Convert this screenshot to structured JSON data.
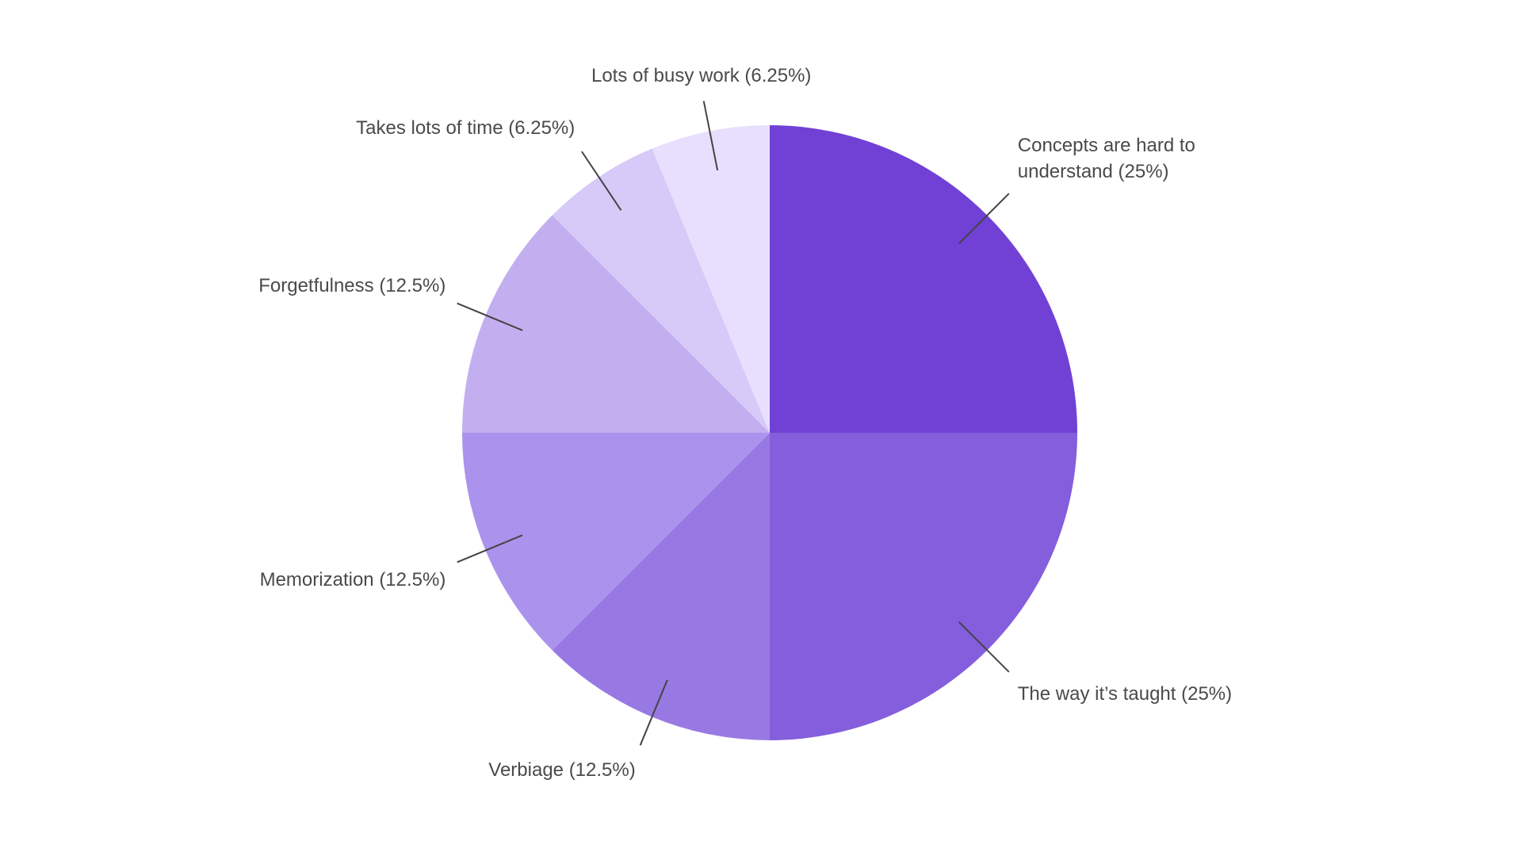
{
  "chart_data": {
    "type": "pie",
    "categories": [
      "Concepts are hard to understand",
      "The way it’s taught",
      "Verbiage",
      "Memorization",
      "Forgetfulness",
      "Takes lots of time",
      "Lots of busy work"
    ],
    "values": [
      25,
      25,
      12.5,
      12.5,
      12.5,
      6.25,
      6.25
    ],
    "value_labels": [
      "(25%)",
      "(25%)",
      "(12.5%)",
      "(12.5%)",
      "(12.5%)",
      "(6.25%)",
      "(6.25%)"
    ],
    "colors": [
      "#7141d6",
      "#845edc",
      "#9879e3",
      "#ab92ec",
      "#c3aff0",
      "#d7c9f8",
      "#e7dffd"
    ]
  }
}
